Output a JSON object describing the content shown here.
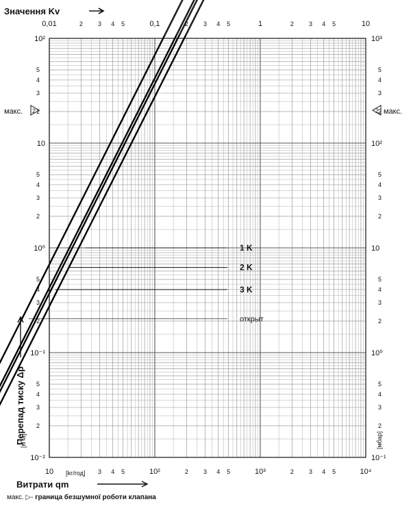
{
  "chart_data": {
    "type": "line",
    "x_scale": "log",
    "y_scale": "log",
    "grid": true,
    "title_top": "Значення Kv",
    "xlabel": "Витрати qm",
    "x_unit": "[kг/год]",
    "ylabel": "Перепад тиску Δp",
    "y_unit_left": "[кПа]",
    "y_unit_right": "[мбар]",
    "xlim": [
      10,
      10000
    ],
    "ylim": [
      0.01,
      100
    ],
    "kv_lim": [
      0.01,
      10
    ],
    "x_major_ticks": [
      {
        "v": 10,
        "label": "10"
      },
      {
        "v": 100,
        "label": "10²"
      },
      {
        "v": 1000,
        "label": "10³"
      },
      {
        "v": 10000,
        "label": "10⁴"
      }
    ],
    "x_minor_labels": [
      "2",
      "3",
      "4",
      "5"
    ],
    "kv_major_ticks": [
      {
        "v": 0.01,
        "label": "0,01"
      },
      {
        "v": 0.1,
        "label": "0,1"
      },
      {
        "v": 1,
        "label": "1"
      },
      {
        "v": 10,
        "label": "10"
      }
    ],
    "kv_minor_labels": [
      "2",
      "3",
      "4",
      "5"
    ],
    "y_left_major_ticks": [
      {
        "v": 100,
        "label": "10²"
      },
      {
        "v": 10,
        "label": "10"
      },
      {
        "v": 1,
        "label": "10⁰"
      },
      {
        "v": 0.1,
        "label": "10⁻¹"
      },
      {
        "v": 0.01,
        "label": "10⁻²"
      }
    ],
    "y_right_major_ticks": [
      {
        "v": 100,
        "label": "10³"
      },
      {
        "v": 10,
        "label": "10²"
      },
      {
        "v": 1,
        "label": "10"
      },
      {
        "v": 0.1,
        "label": "10⁰"
      },
      {
        "v": 0.01,
        "label": "10⁻¹"
      }
    ],
    "y_minor_labels": [
      "2",
      "3",
      "4",
      "5"
    ],
    "max_marker": {
      "text": "макс.",
      "symbol": "2",
      "y": 20
    },
    "series": [
      {
        "name": "1 K",
        "kv": 0.19,
        "bold_until_x": 620,
        "label_y": 1.0
      },
      {
        "name": "2 K",
        "kv": 0.165,
        "bold_until_x": 620,
        "label_y": 0.65
      },
      {
        "name": "3 K",
        "kv": 0.155,
        "bold_until_x": 620,
        "label_y": 0.4
      },
      {
        "name": "открыт",
        "kv": 0.12,
        "bold_until_x": 820,
        "label_y": 0.21
      }
    ],
    "footnote": {
      "prefix": "макс. ▷-",
      "text": "граница безшумної роботи клапана"
    }
  }
}
